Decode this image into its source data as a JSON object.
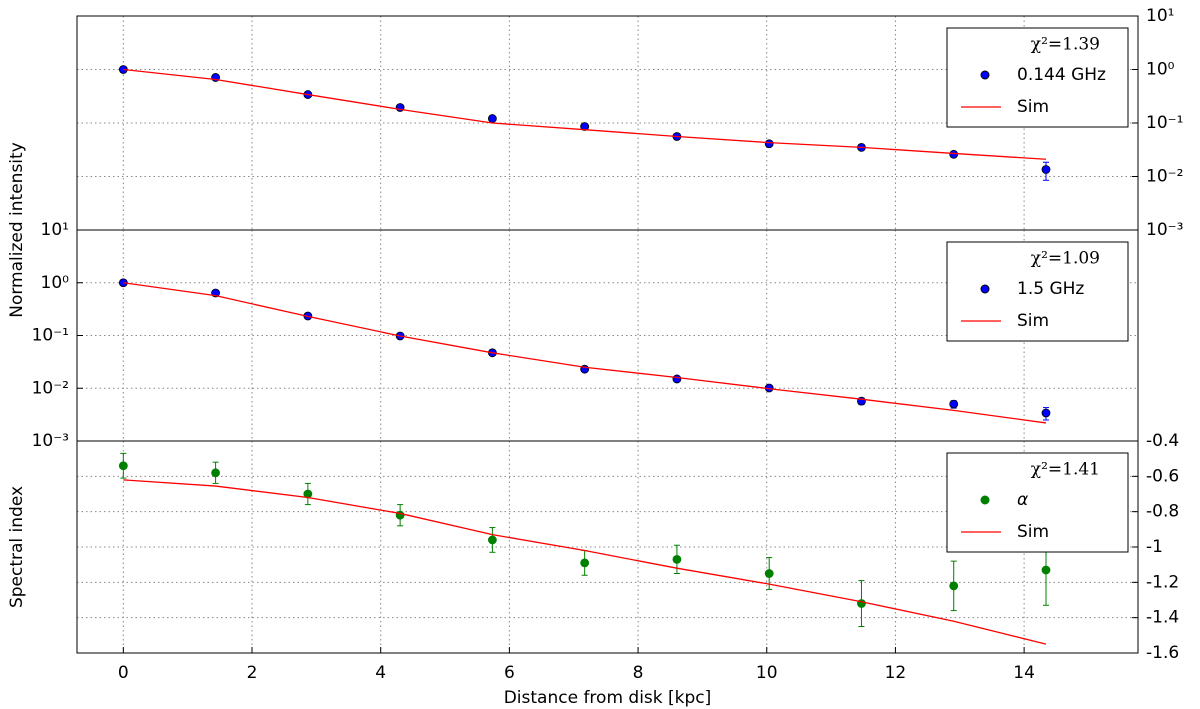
{
  "chart_data": [
    {
      "type": "line",
      "annotation": "χ²=1.39",
      "y_label": "Normalized intensity",
      "log_y": true,
      "yaxis_side": "right",
      "legend": "upper right",
      "grid": true,
      "xlim": [
        -0.72,
        15.77
      ],
      "ylim": [
        0.001,
        10
      ],
      "yticks": [
        {
          "value": 0.001,
          "label": "10⁻³"
        },
        {
          "value": 0.01,
          "label": "10⁻²"
        },
        {
          "value": 0.1,
          "label": "10⁻¹"
        },
        {
          "value": 1,
          "label": "10⁰"
        },
        {
          "value": 10,
          "label": "10¹"
        }
      ],
      "x": [
        0,
        1.434,
        2.868,
        4.302,
        5.736,
        7.17,
        8.604,
        10.038,
        11.472,
        12.906,
        14.34
      ],
      "series": [
        {
          "name": "0.144 GHz",
          "mode": "markers",
          "color": "#0000ff",
          "values": [
            1.0,
            0.71,
            0.34,
            0.195,
            0.121,
            0.086,
            0.056,
            0.041,
            0.035,
            0.026,
            0.0135
          ],
          "errors": [
            0.03,
            0.02,
            0.015,
            0.01,
            0.008,
            0.005,
            0.004,
            0.003,
            0.003,
            0.003,
            0.005
          ]
        },
        {
          "name": "Sim",
          "mode": "line",
          "color": "#ff0000",
          "values": [
            1.0,
            0.65,
            0.34,
            0.18,
            0.1,
            0.075,
            0.056,
            0.043,
            0.035,
            0.027,
            0.021
          ]
        }
      ]
    },
    {
      "type": "line",
      "annotation": "χ²=1.09",
      "log_y": true,
      "yaxis_side": "left",
      "legend": "upper right",
      "grid": true,
      "xlim": [
        -0.72,
        15.77
      ],
      "ylim": [
        0.001,
        10
      ],
      "yticks": [
        {
          "value": 0.001,
          "label": "10⁻³"
        },
        {
          "value": 0.01,
          "label": "10⁻²"
        },
        {
          "value": 0.1,
          "label": "10⁻¹"
        },
        {
          "value": 1,
          "label": "10⁰"
        },
        {
          "value": 10,
          "label": "10¹"
        }
      ],
      "x": [
        0,
        1.434,
        2.868,
        4.302,
        5.736,
        7.17,
        8.604,
        10.038,
        11.472,
        12.906,
        14.34
      ],
      "series": [
        {
          "name": "1.5 GHz",
          "mode": "markers",
          "color": "#0000ff",
          "values": [
            1.0,
            0.64,
            0.234,
            0.098,
            0.047,
            0.023,
            0.015,
            0.0101,
            0.0057,
            0.005,
            0.0034
          ],
          "errors": [
            0.03,
            0.02,
            0.008,
            0.004,
            0.002,
            0.001,
            0.0008,
            0.0006,
            0.0008,
            0.0008,
            0.0009
          ]
        },
        {
          "name": "Sim",
          "mode": "line",
          "color": "#ff0000",
          "values": [
            1.0,
            0.57,
            0.23,
            0.098,
            0.047,
            0.025,
            0.016,
            0.0098,
            0.0062,
            0.0038,
            0.0022
          ]
        }
      ]
    },
    {
      "type": "line",
      "annotation": "χ²=1.41",
      "y_label": "Spectral index",
      "x_label": "Distance from disk [kpc]",
      "log_y": false,
      "yaxis_side": "right",
      "legend": "upper right",
      "grid": true,
      "xlim": [
        -0.72,
        15.77
      ],
      "ylim": [
        -1.6,
        -0.4
      ],
      "xticks": [
        0,
        2,
        4,
        6,
        8,
        10,
        12,
        14
      ],
      "yticks": [
        -1.6,
        -1.4,
        -1.2,
        -1.0,
        -0.8,
        -0.6,
        -0.4
      ],
      "x": [
        0,
        1.434,
        2.868,
        4.302,
        5.736,
        7.17,
        8.604,
        10.038,
        11.472,
        12.906,
        14.34
      ],
      "series": [
        {
          "name": "α",
          "mode": "markers",
          "color": "#008000",
          "values": [
            -0.54,
            -0.58,
            -0.7,
            -0.82,
            -0.96,
            -1.09,
            -1.07,
            -1.15,
            -1.32,
            -1.22,
            -1.13
          ],
          "errors": [
            0.07,
            0.06,
            0.06,
            0.06,
            0.07,
            0.07,
            0.08,
            0.09,
            0.13,
            0.14,
            0.2
          ]
        },
        {
          "name": "Sim",
          "mode": "line",
          "color": "#ff0000",
          "values": [
            -0.62,
            -0.655,
            -0.72,
            -0.81,
            -0.93,
            -1.02,
            -1.12,
            -1.21,
            -1.31,
            -1.42,
            -1.55
          ]
        }
      ]
    }
  ]
}
